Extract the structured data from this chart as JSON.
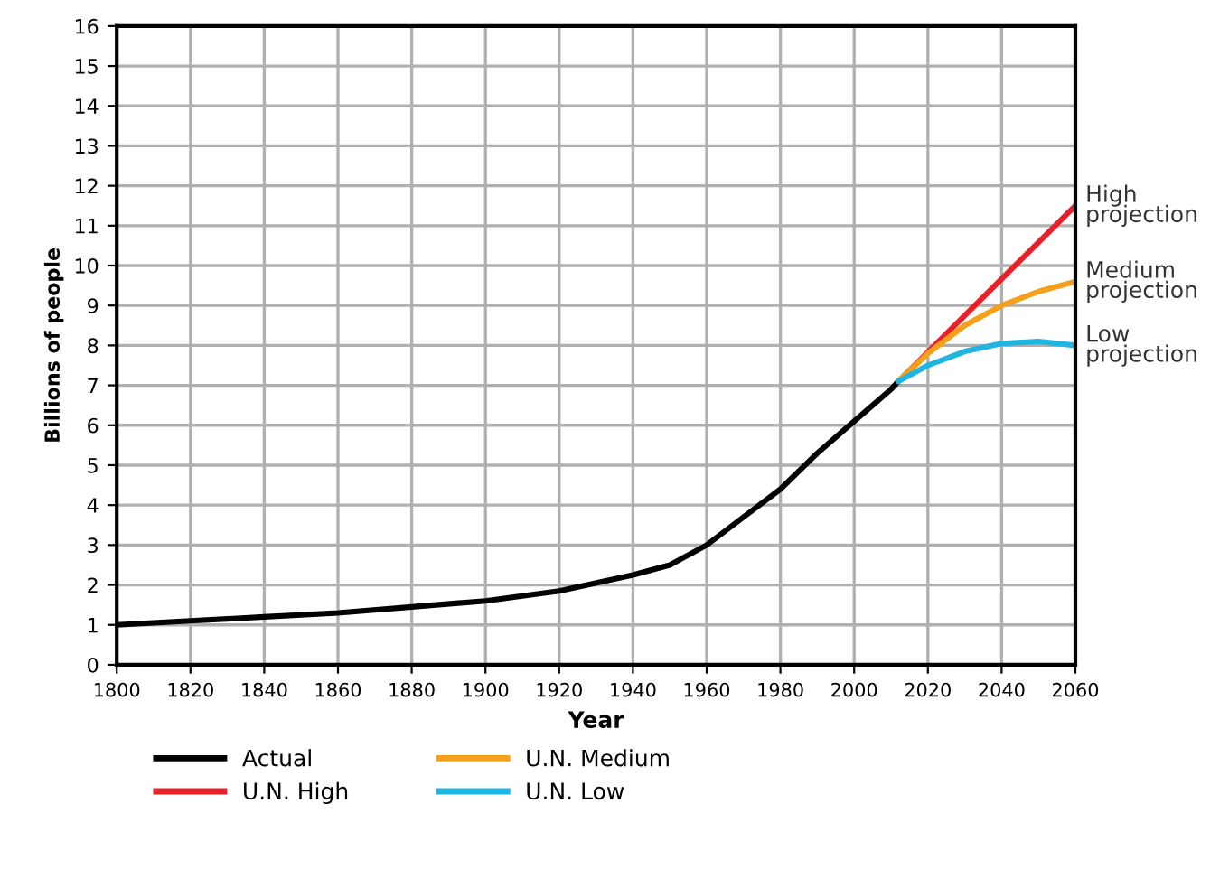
{
  "chart_data": {
    "type": "line",
    "xlabel": "Year",
    "ylabel": "Billions of people",
    "xlim": [
      1800,
      2060
    ],
    "xticks": [
      1800,
      1820,
      1840,
      1860,
      1880,
      1900,
      1920,
      1940,
      1960,
      1980,
      2000,
      2020,
      2040,
      2060
    ],
    "ylim": [
      0,
      16
    ],
    "yticks": [
      0,
      1,
      2,
      3,
      4,
      5,
      6,
      7,
      8,
      9,
      10,
      11,
      12,
      13,
      14,
      15,
      16
    ],
    "grid": true,
    "legend": "bottom",
    "marker": "none",
    "line_style": "solid",
    "series": [
      {
        "name": "Actual",
        "color": "#000000",
        "x": [
          1800,
          1820,
          1840,
          1860,
          1880,
          1900,
          1920,
          1940,
          1950,
          1960,
          1970,
          1980,
          1990,
          2000,
          2010,
          2012
        ],
        "values": [
          1.0,
          1.1,
          1.2,
          1.3,
          1.45,
          1.6,
          1.85,
          2.25,
          2.5,
          3.0,
          3.7,
          4.4,
          5.3,
          6.1,
          6.9,
          7.1
        ]
      },
      {
        "name": "U.N. High",
        "color": "#e8202a",
        "x": [
          2012,
          2060
        ],
        "values": [
          7.1,
          11.5
        ]
      },
      {
        "name": "U.N. Medium",
        "color": "#f5a01a",
        "x": [
          2012,
          2020,
          2030,
          2040,
          2050,
          2060
        ],
        "values": [
          7.1,
          7.8,
          8.5,
          9.0,
          9.35,
          9.6
        ]
      },
      {
        "name": "U.N. Low",
        "color": "#1fb5e0",
        "x": [
          2012,
          2020,
          2030,
          2040,
          2050,
          2060
        ],
        "values": [
          7.1,
          7.5,
          7.85,
          8.05,
          8.1,
          8.0
        ]
      }
    ],
    "annotations": [
      "High\nprojection",
      "Medium\nprojection",
      "Low\nprojection"
    ]
  }
}
